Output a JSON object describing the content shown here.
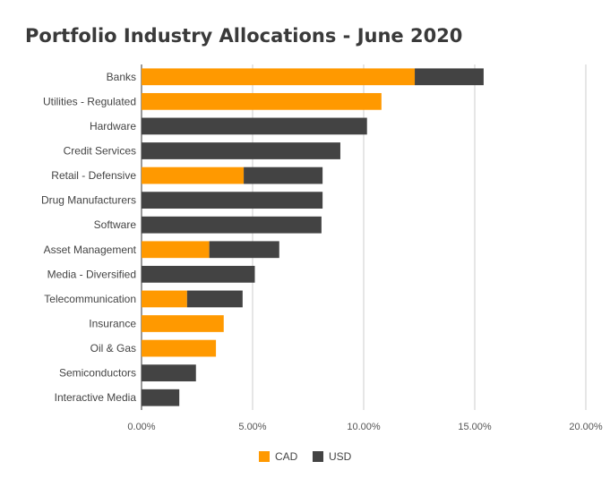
{
  "chart_data": {
    "type": "bar",
    "orientation": "horizontal",
    "stacked": true,
    "title": "Portfolio Industry Allocations - June 2020",
    "categories": [
      "Banks",
      "Utilities - Regulated",
      "Hardware",
      "Credit Services",
      "Retail - Defensive",
      "Drug Manufacturers",
      "Software",
      "Asset Management",
      "Media - Diversified",
      "Telecommunication",
      "Insurance",
      "Oil & Gas",
      "Semiconductors",
      "Interactive Media"
    ],
    "series": [
      {
        "name": "CAD",
        "color": "#ff9900",
        "values": [
          12.3,
          10.8,
          0,
          0,
          4.6,
          0,
          0,
          3.05,
          0,
          2.05,
          3.7,
          3.35,
          0,
          0
        ]
      },
      {
        "name": "USD",
        "color": "#434343",
        "values": [
          3.1,
          0,
          10.15,
          8.95,
          3.55,
          8.15,
          8.1,
          3.15,
          5.1,
          2.5,
          0,
          0,
          2.45,
          1.7
        ]
      }
    ],
    "x_ticks": [
      "0.00%",
      "5.00%",
      "10.00%",
      "15.00%",
      "20.00%"
    ],
    "xlim": [
      0,
      20
    ],
    "grid": "vertical",
    "legend": "bottom"
  }
}
